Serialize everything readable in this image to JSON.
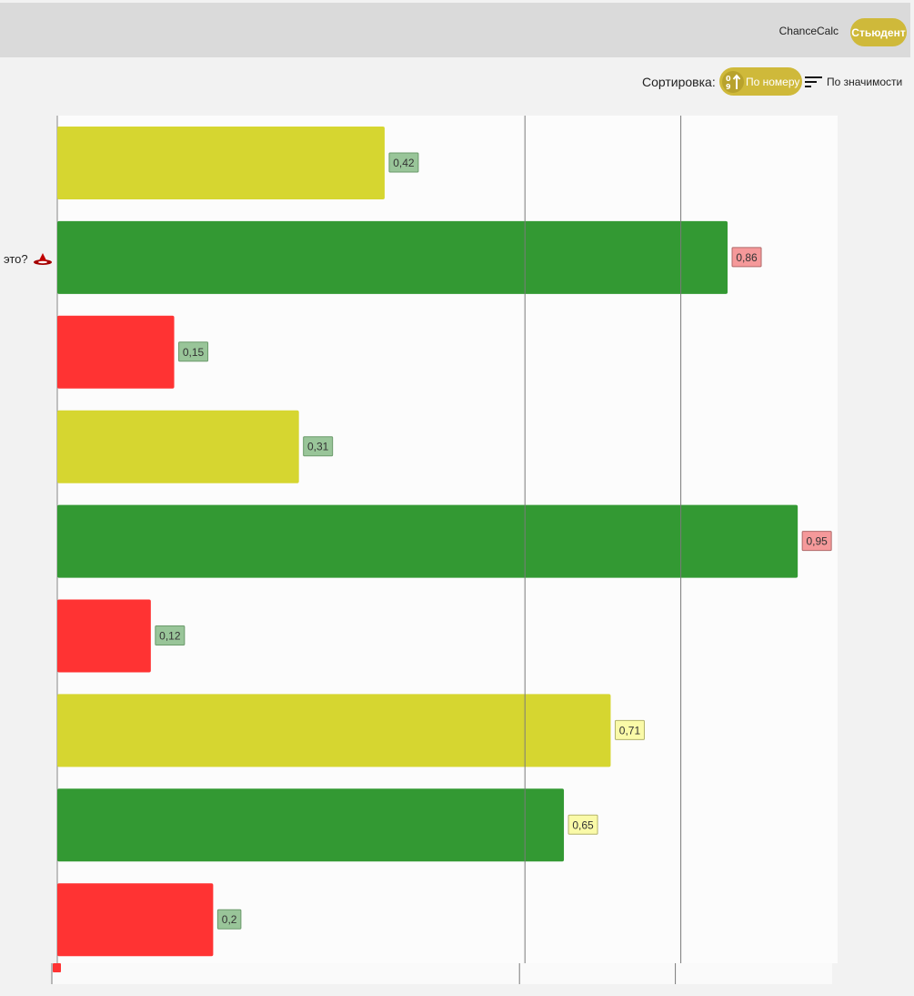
{
  "header": {
    "app_name": "ChanceCalc",
    "user_button": "Стьюдент"
  },
  "sort": {
    "label": "Сортировка:",
    "by_number": "По номеру",
    "by_importance": "По значимости"
  },
  "row_label": "это?",
  "colors": {
    "accent": "#cfb93a",
    "bar_green": "#339933",
    "bar_yellow": "#d6d630",
    "bar_red": "#ff3333",
    "badge_green": "#99c599",
    "badge_red": "#f5999a",
    "badge_yellow": "#fafaa8"
  },
  "chart_data": {
    "type": "bar",
    "orientation": "horizontal",
    "values": [
      0.42,
      0.86,
      0.15,
      0.31,
      0.95,
      0.12,
      0.71,
      0.65,
      0.2
    ],
    "value_labels": [
      "0,42",
      "0,86",
      "0,15",
      "0,31",
      "0,95",
      "0,12",
      "0,71",
      "0,65",
      "0,2"
    ],
    "bar_colors": [
      "yellow",
      "green",
      "red",
      "yellow",
      "green",
      "red",
      "yellow",
      "green",
      "red"
    ],
    "badge_colors": [
      "green",
      "red",
      "green",
      "green",
      "red",
      "green",
      "yellow",
      "yellow",
      "green"
    ],
    "reference_lines": [
      0.6,
      0.8
    ],
    "xlim": [
      0,
      1
    ],
    "grid": false
  }
}
